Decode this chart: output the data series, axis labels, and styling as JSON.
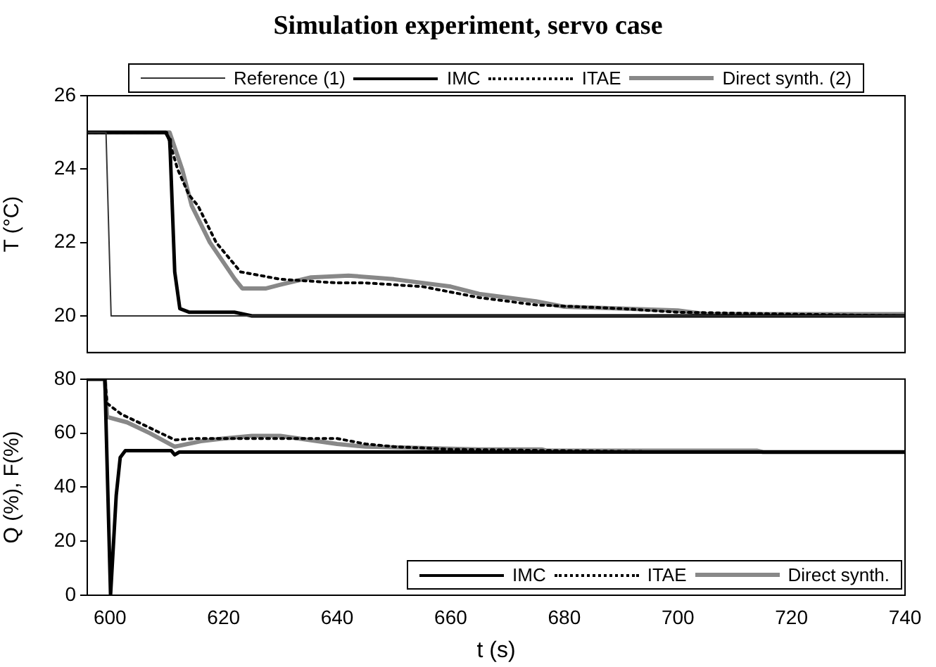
{
  "chart_data": [
    {
      "type": "line",
      "title": "Simulation experiment, servo case",
      "ylabel": "T (°C)",
      "xlim": [
        596,
        740
      ],
      "ylim": [
        19,
        26
      ],
      "xticks": [
        600,
        620,
        640,
        660,
        680,
        700,
        720,
        740
      ],
      "yticks": [
        20,
        22,
        24,
        26
      ],
      "tick_labels": "y",
      "grid": false,
      "legend": "top",
      "marker": "none",
      "series": [
        {
          "name": "Reference (1)",
          "color": "#333333",
          "line_style": "solid",
          "x": [
            596,
            599.3,
            600.2,
            740
          ],
          "values": [
            25,
            25,
            20,
            20
          ]
        },
        {
          "name": "IMC",
          "color": "#000000",
          "line_style": "solid",
          "x": [
            596,
            609.8,
            610.5,
            610.6,
            611.4,
            612.3,
            614,
            621.9,
            625,
            740
          ],
          "values": [
            25,
            25,
            24.8,
            24.5,
            21.2,
            20.2,
            20.1,
            20.1,
            20,
            20
          ]
        },
        {
          "name": "ITAE",
          "color": "#000000",
          "line_style": "dotted",
          "x": [
            596,
            610,
            611.9,
            613.9,
            615.5,
            618.7,
            623,
            630,
            640,
            645,
            655,
            665,
            675,
            690,
            700,
            720,
            740
          ],
          "values": [
            25,
            25,
            24,
            23.3,
            23,
            22,
            21.2,
            21,
            20.9,
            20.9,
            20.8,
            20.5,
            20.3,
            20.2,
            20.1,
            20.05,
            20
          ]
        },
        {
          "name": "Direct synth. (2)",
          "color": "#888888",
          "line_style": "solid",
          "x": [
            596,
            610.5,
            612.7,
            614.4,
            617.6,
            622,
            623.3,
            627.5,
            630,
            635.4,
            642,
            650,
            660,
            665,
            675,
            680,
            690,
            700,
            705,
            740
          ],
          "values": [
            25,
            25,
            24,
            23,
            22,
            21,
            20.75,
            20.75,
            20.85,
            21.05,
            21.1,
            21,
            20.8,
            20.6,
            20.4,
            20.25,
            20.2,
            20.15,
            20.05,
            20.05
          ]
        }
      ]
    },
    {
      "type": "line",
      "xlabel": "t (s)",
      "ylabel": "Q (%), F(%)",
      "xlim": [
        596,
        740
      ],
      "ylim": [
        0,
        80
      ],
      "xticks": [
        600,
        620,
        640,
        660,
        680,
        700,
        720,
        740
      ],
      "yticks": [
        0,
        20,
        40,
        60,
        80
      ],
      "grid": false,
      "legend": "bottom right",
      "marker": "none",
      "series": [
        {
          "name": "IMC",
          "color": "#000000",
          "line_style": "solid",
          "x": [
            596,
            599.1,
            600.1,
            601.1,
            601.8,
            602.7,
            610.8,
            611.4,
            612.2,
            740
          ],
          "values": [
            80,
            80,
            0,
            37,
            51,
            53.5,
            53.5,
            52,
            53,
            53
          ]
        },
        {
          "name": "ITAE",
          "color": "#000000",
          "line_style": "dotted",
          "x": [
            596,
            599.1,
            599.5,
            602,
            606,
            611.4,
            615,
            640,
            645,
            650,
            660,
            680,
            700,
            740
          ],
          "values": [
            80,
            80,
            71,
            67,
            63,
            57.5,
            58,
            58,
            56,
            55,
            54,
            53.5,
            53,
            53
          ]
        },
        {
          "name": "Direct synth.",
          "color": "#888888",
          "line_style": "solid",
          "x": [
            596,
            599.1,
            599.5,
            603,
            607,
            611.4,
            616,
            620,
            625,
            630,
            635,
            640,
            645,
            655,
            665,
            676,
            677,
            714,
            715,
            740
          ],
          "values": [
            80,
            80,
            66,
            64,
            60,
            55,
            57,
            58,
            59,
            59,
            57.5,
            56,
            55,
            54.5,
            54,
            54,
            53.5,
            53.5,
            53,
            53
          ]
        }
      ]
    }
  ]
}
